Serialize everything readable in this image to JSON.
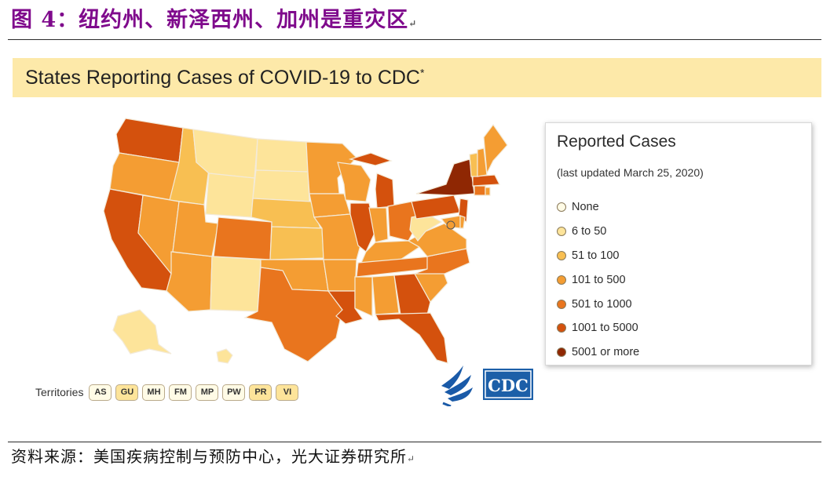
{
  "figure": {
    "title": "图 4：纽约州、新泽西州、加州是重灾区",
    "paragraph_mark": "↵"
  },
  "banner": {
    "title": "States Reporting Cases of COVID-19 to CDC",
    "footnote_mark": "*"
  },
  "legend": {
    "title": "Reported Cases",
    "subtitle": "(last updated March 25, 2020)",
    "items": [
      {
        "label": "None",
        "color": "#fffbe6"
      },
      {
        "label": "6 to 50",
        "color": "#fde49a"
      },
      {
        "label": "51 to 100",
        "color": "#f8bf52"
      },
      {
        "label": "101 to 500",
        "color": "#f49d33"
      },
      {
        "label": "501 to 1000",
        "color": "#e9751e"
      },
      {
        "label": "1001 to 5000",
        "color": "#d4510d"
      },
      {
        "label": "5001 or more",
        "color": "#8f2703"
      }
    ]
  },
  "map": {
    "category_colors": {
      "none": "#fffbe6",
      "c6_50": "#fde49a",
      "c51_100": "#f8bf52",
      "c101_500": "#f49d33",
      "c501_1000": "#e9751e",
      "c1001_5000": "#d4510d",
      "c5001_plus": "#8f2703"
    },
    "states": [
      {
        "name": "WA",
        "category": "c1001_5000"
      },
      {
        "name": "OR",
        "category": "c101_500"
      },
      {
        "name": "CA",
        "category": "c1001_5000"
      },
      {
        "name": "ID",
        "category": "c51_100"
      },
      {
        "name": "NV",
        "category": "c101_500"
      },
      {
        "name": "AZ",
        "category": "c101_500"
      },
      {
        "name": "UT",
        "category": "c101_500"
      },
      {
        "name": "MT",
        "category": "c6_50"
      },
      {
        "name": "WY",
        "category": "c6_50"
      },
      {
        "name": "CO",
        "category": "c501_1000"
      },
      {
        "name": "NM",
        "category": "c6_50"
      },
      {
        "name": "ND",
        "category": "c6_50"
      },
      {
        "name": "SD",
        "category": "c6_50"
      },
      {
        "name": "NE",
        "category": "c51_100"
      },
      {
        "name": "KS",
        "category": "c51_100"
      },
      {
        "name": "OK",
        "category": "c101_500"
      },
      {
        "name": "TX",
        "category": "c501_1000"
      },
      {
        "name": "MN",
        "category": "c101_500"
      },
      {
        "name": "IA",
        "category": "c101_500"
      },
      {
        "name": "MO",
        "category": "c101_500"
      },
      {
        "name": "AR",
        "category": "c101_500"
      },
      {
        "name": "LA",
        "category": "c1001_5000"
      },
      {
        "name": "WI",
        "category": "c101_500"
      },
      {
        "name": "IL",
        "category": "c1001_5000"
      },
      {
        "name": "MI",
        "category": "c1001_5000"
      },
      {
        "name": "IN",
        "category": "c101_500"
      },
      {
        "name": "OH",
        "category": "c501_1000"
      },
      {
        "name": "KY",
        "category": "c101_500"
      },
      {
        "name": "TN",
        "category": "c501_1000"
      },
      {
        "name": "MS",
        "category": "c101_500"
      },
      {
        "name": "AL",
        "category": "c101_500"
      },
      {
        "name": "GA",
        "category": "c1001_5000"
      },
      {
        "name": "FL",
        "category": "c1001_5000"
      },
      {
        "name": "SC",
        "category": "c101_500"
      },
      {
        "name": "NC",
        "category": "c501_1000"
      },
      {
        "name": "VA",
        "category": "c101_500"
      },
      {
        "name": "WV",
        "category": "c6_50"
      },
      {
        "name": "PA",
        "category": "c1001_5000"
      },
      {
        "name": "NY",
        "category": "c5001_plus"
      },
      {
        "name": "NJ",
        "category": "c1001_5000"
      },
      {
        "name": "MD",
        "category": "c101_500"
      },
      {
        "name": "DE",
        "category": "c101_500"
      },
      {
        "name": "DC",
        "category": "c101_500"
      },
      {
        "name": "CT",
        "category": "c501_1000"
      },
      {
        "name": "RI",
        "category": "c101_500"
      },
      {
        "name": "MA",
        "category": "c1001_5000"
      },
      {
        "name": "VT",
        "category": "c51_100"
      },
      {
        "name": "NH",
        "category": "c101_500"
      },
      {
        "name": "ME",
        "category": "c101_500"
      },
      {
        "name": "AK",
        "category": "c6_50"
      },
      {
        "name": "HI",
        "category": "c6_50"
      }
    ]
  },
  "territories": {
    "label": "Territories",
    "items": [
      {
        "code": "AS",
        "color": "#fffbe6"
      },
      {
        "code": "GU",
        "color": "#fde49a"
      },
      {
        "code": "MH",
        "color": "#fffbe6"
      },
      {
        "code": "FM",
        "color": "#fffbe6"
      },
      {
        "code": "MP",
        "color": "#fffbe6"
      },
      {
        "code": "PW",
        "color": "#fffbe6"
      },
      {
        "code": "PR",
        "color": "#fde49a"
      },
      {
        "code": "VI",
        "color": "#fde49a"
      }
    ]
  },
  "logos": {
    "cdc_text": "CDC",
    "hhs_name": "hhs-eagle"
  },
  "source": {
    "text": "资料来源：美国疾病控制与预防中心，光大证券研究所"
  }
}
